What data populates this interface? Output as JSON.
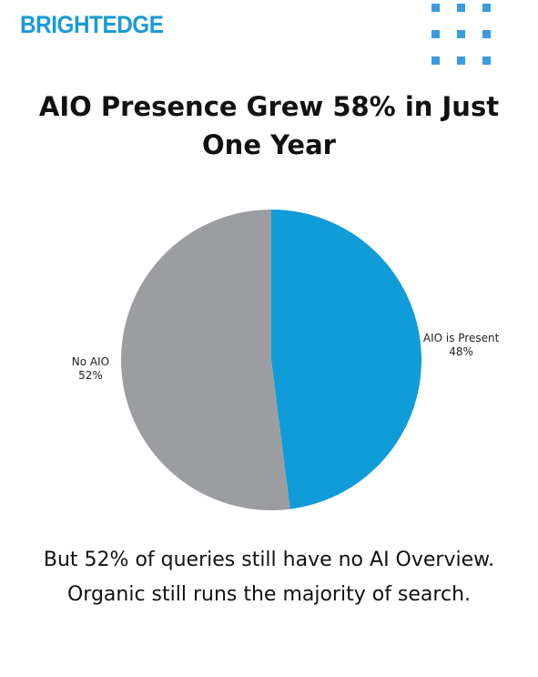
{
  "logo": "BRIGHTEDGE",
  "caption": "But 52% of queries still have no AI Overview. Organic still runs the majority of search.",
  "chart_data": {
    "type": "pie",
    "title": "AIO Presence Grew 58% in Just One Year",
    "categories": [
      "AIO is Present",
      "No AIO"
    ],
    "values": [
      48,
      52
    ],
    "value_labels": [
      "48%",
      "52%"
    ],
    "colors": [
      "#0f9cd8",
      "#9c9da1"
    ]
  }
}
